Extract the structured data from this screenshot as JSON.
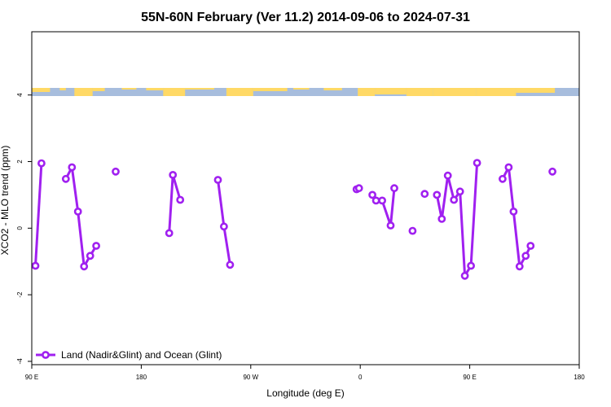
{
  "chart_data": {
    "type": "line",
    "title": "55N-60N February (Ver 11.2)   2014-09-06 to 2024-07-31",
    "xlabel": "Longitude (deg E)",
    "ylabel": "XCO2 - MLO trend (ppm)",
    "xlim": [
      90,
      540
    ],
    "ylim": [
      -4.1,
      5.9
    ],
    "x_ticks": [
      {
        "value": 90,
        "label": "90 E"
      },
      {
        "value": 180,
        "label": "180"
      },
      {
        "value": 270,
        "label": "90 W"
      },
      {
        "value": 360,
        "label": "0"
      },
      {
        "value": 450,
        "label": "90 E"
      },
      {
        "value": 540,
        "label": "180"
      }
    ],
    "y_ticks": [
      {
        "value": -4,
        "label": "-4"
      },
      {
        "value": -2,
        "label": "-2"
      },
      {
        "value": 0,
        "label": "0"
      },
      {
        "value": 2,
        "label": "2"
      },
      {
        "value": 4,
        "label": "4"
      }
    ],
    "grid": false,
    "legend_position": "bottom-left",
    "series": [
      {
        "name": "Land (Nadir&Glint) and Ocean (Glint)",
        "color": "#a020f0",
        "segments": [
          [
            [
              93,
              -1.13
            ],
            [
              98,
              1.95
            ]
          ],
          [
            [
              118,
              1.48
            ],
            [
              123,
              1.83
            ],
            [
              128,
              0.5
            ],
            [
              133,
              -1.15
            ],
            [
              138,
              -0.83
            ],
            [
              143,
              -0.53
            ]
          ],
          [
            [
              159,
              1.7
            ]
          ],
          [
            [
              203,
              -0.15
            ],
            [
              206,
              1.6
            ],
            [
              212,
              0.85
            ]
          ],
          [
            [
              243,
              1.45
            ],
            [
              248,
              0.05
            ],
            [
              253,
              -1.1
            ]
          ],
          [
            [
              357,
              1.17
            ],
            [
              359,
              1.2
            ]
          ],
          [
            [
              370,
              1.0
            ],
            [
              373,
              0.83
            ],
            [
              378,
              0.83
            ],
            [
              385,
              0.08
            ],
            [
              388,
              1.2
            ]
          ],
          [
            [
              403,
              -0.08
            ]
          ],
          [
            [
              413,
              1.03
            ]
          ],
          [
            [
              423,
              1.0
            ],
            [
              427,
              0.28
            ],
            [
              432,
              1.58
            ],
            [
              437,
              0.85
            ],
            [
              442,
              1.1
            ],
            [
              446,
              -1.43
            ],
            [
              451,
              -1.13
            ],
            [
              456,
              1.96
            ]
          ],
          [
            [
              477,
              1.48
            ],
            [
              482,
              1.83
            ],
            [
              486,
              0.5
            ],
            [
              491,
              -1.15
            ],
            [
              496,
              -0.83
            ],
            [
              500,
              -0.53
            ]
          ],
          [
            [
              518,
              1.7
            ]
          ]
        ]
      }
    ],
    "colors": {
      "land": "#ffd966",
      "ocean": "#a7bddd",
      "series": "#a020f0"
    }
  }
}
